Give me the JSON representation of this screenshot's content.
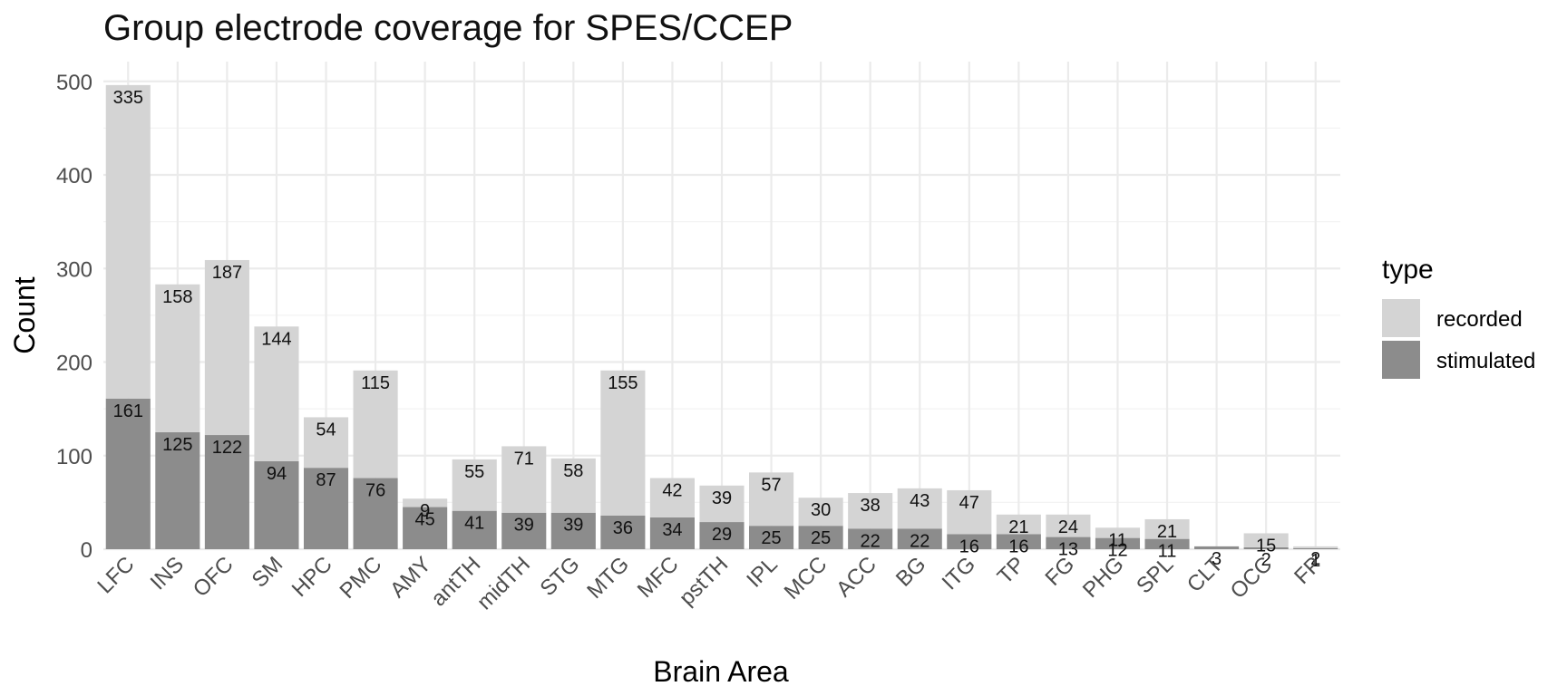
{
  "chart_data": {
    "type": "bar",
    "stacked": true,
    "title": "Group electrode coverage for SPES/CCEP",
    "xlabel": "Brain Area",
    "ylabel": "Count",
    "ylim": [
      0,
      520
    ],
    "y_ticks": [
      "0",
      "100",
      "200",
      "300",
      "400",
      "500"
    ],
    "grid": true,
    "legend": {
      "title": "type",
      "position": "right"
    },
    "categories": [
      "LFC",
      "INS",
      "OFC",
      "SM",
      "HPC",
      "PMC",
      "AMY",
      "antTH",
      "midTH",
      "STG",
      "MTG",
      "MFC",
      "pstTH",
      "IPL",
      "MCC",
      "ACC",
      "BG",
      "ITG",
      "TP",
      "FG",
      "PHG",
      "SPL",
      "CLT",
      "OCC",
      "FP"
    ],
    "series": [
      {
        "name": "stimulated",
        "color": "#8c8c8c",
        "values": [
          161,
          125,
          122,
          94,
          87,
          76,
          45,
          41,
          39,
          39,
          36,
          34,
          29,
          25,
          25,
          22,
          22,
          16,
          16,
          13,
          12,
          11,
          3,
          2,
          1
        ],
        "labels": [
          "161",
          "125",
          "122",
          "94",
          "87",
          "76",
          "45",
          "41",
          "39",
          "39",
          "36",
          "34",
          "29",
          "25",
          "25",
          "22",
          "22",
          "16",
          "16",
          "13",
          "12",
          "11",
          "3",
          "2",
          "1"
        ]
      },
      {
        "name": "recorded",
        "color": "#d4d4d4",
        "values": [
          335,
          158,
          187,
          144,
          54,
          115,
          9,
          55,
          71,
          58,
          155,
          42,
          39,
          57,
          30,
          38,
          43,
          47,
          21,
          24,
          11,
          21,
          0,
          15,
          2
        ],
        "labels": [
          "335",
          "158",
          "187",
          "144",
          "54",
          "115",
          "9",
          "55",
          "71",
          "58",
          "155",
          "42",
          "39",
          "57",
          "30",
          "38",
          "43",
          "47",
          "21",
          "24",
          "11",
          "21",
          "",
          "15",
          "2"
        ]
      }
    ]
  }
}
